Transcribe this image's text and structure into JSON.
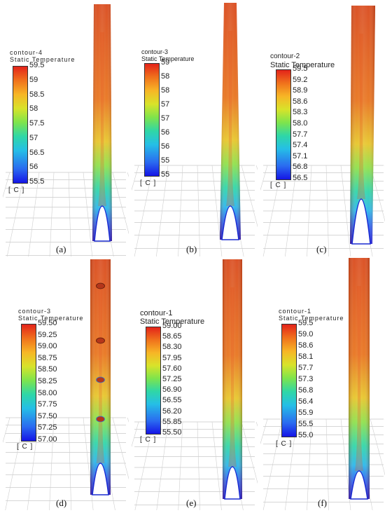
{
  "panels": [
    {
      "caption": "(a)",
      "title_line1": "contour-4",
      "title_line2": "Static Temperature",
      "unit": "[ C ]",
      "ticks": [
        "59.5",
        "59",
        "58.5",
        "58",
        "57.5",
        "57",
        "56.5",
        "56",
        "55.5"
      ]
    },
    {
      "caption": "(b)",
      "title_line1": "contour-3",
      "title_line2": "Static Temperature",
      "unit": "[ C ]",
      "ticks": [
        "59",
        "58",
        "58",
        "57",
        "57",
        "56",
        "56",
        "55",
        "55"
      ]
    },
    {
      "caption": "(c)",
      "title_line1": "contour-2",
      "title_line2": "Static Temperature",
      "unit": "[ C ]",
      "ticks": [
        "59.5",
        "59.2",
        "58.9",
        "58.6",
        "58.3",
        "58.0",
        "57.7",
        "57.4",
        "57.1",
        "56.8",
        "56.5"
      ]
    },
    {
      "caption": "(d)",
      "title_line1": "contour-3",
      "title_line2": "Static Temperature",
      "unit": "[ C ]",
      "ticks": [
        "59.50",
        "59.25",
        "59.00",
        "58.75",
        "58.50",
        "58.25",
        "58.00",
        "57.75",
        "57.50",
        "57.25",
        "57.00"
      ]
    },
    {
      "caption": "(e)",
      "title_line1": "contour-1",
      "title_line2": "Static Temperature",
      "unit": "[ C ]",
      "ticks": [
        "59.00",
        "58.65",
        "58.30",
        "57.95",
        "57.60",
        "57.25",
        "56.90",
        "56.55",
        "56.20",
        "55.85",
        "55.50"
      ]
    },
    {
      "caption": "(f)",
      "title_line1": "contour-1",
      "title_line2": "Static Temperature",
      "unit": "[ C ]",
      "ticks": [
        "59.5",
        "59.0",
        "58.6",
        "58.1",
        "57.7",
        "57.3",
        "56.8",
        "56.4",
        "55.9",
        "55.5",
        "55.0"
      ]
    }
  ]
}
